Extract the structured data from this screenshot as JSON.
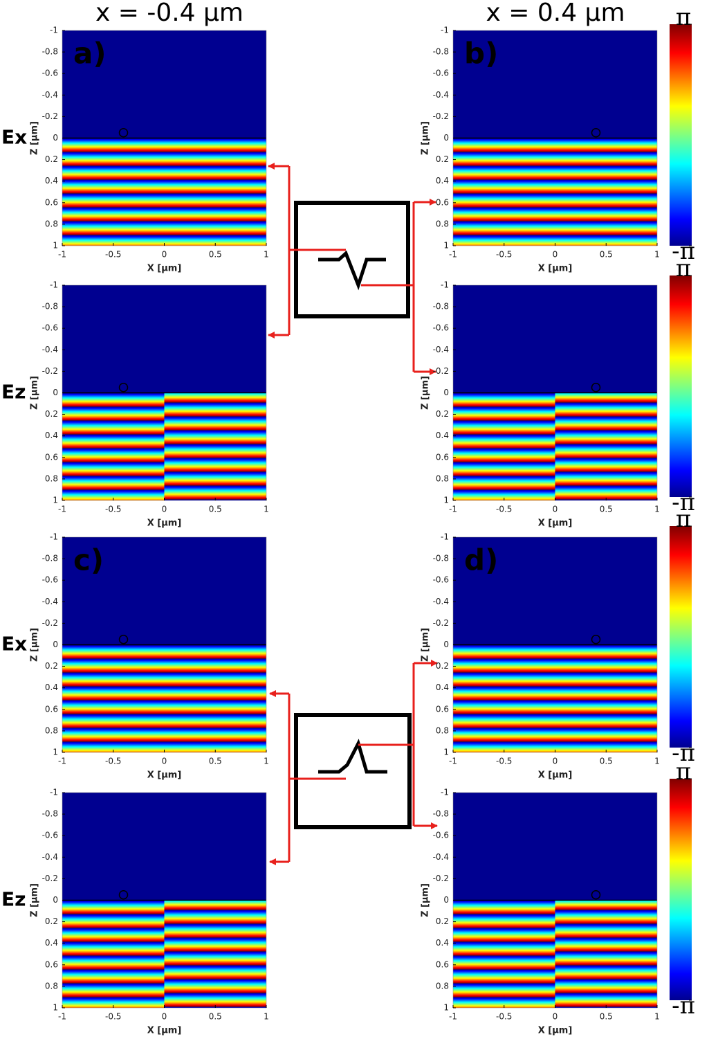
{
  "column_headers": [
    "x = -0.4 μm",
    "x = 0.4 μm"
  ],
  "row_labels": [
    "Ex",
    "Ez",
    "Ex",
    "Ez"
  ],
  "colorbars": [
    {
      "ylim": [
        -3.1416,
        3.1416
      ],
      "yticks": [
        {
          "value": 3.1416,
          "label": "π"
        },
        {
          "value": -3.1416,
          "label": "-π"
        }
      ]
    },
    {
      "ylim": [
        -3.1416,
        3.1416
      ],
      "yticks": [
        {
          "value": 3.1416,
          "label": "π"
        },
        {
          "value": -3.1416,
          "label": "-π"
        }
      ]
    },
    {
      "ylim": [
        -3.1416,
        3.1416
      ],
      "yticks": [
        {
          "value": 3.1416,
          "label": "π"
        },
        {
          "value": -3.1416,
          "label": "-π"
        }
      ]
    },
    {
      "ylim": [
        -3.1416,
        3.1416
      ],
      "yticks": [
        {
          "value": 3.1416,
          "label": "π"
        },
        {
          "value": -3.1416,
          "label": "-π"
        }
      ]
    }
  ],
  "chart_data": [
    {
      "type": "heatmap",
      "panel_label": "a)",
      "xlabel": "X [μm]",
      "ylabel": "Z [μm]",
      "xlim": [
        -1,
        1
      ],
      "ylim": [
        1,
        -1
      ],
      "xticks": [
        -1,
        -0.5,
        0,
        0.5,
        1
      ],
      "yticks": [
        -1,
        -0.8,
        -0.6,
        -0.4,
        -0.2,
        0,
        0.2,
        0.4,
        0.6,
        0.8,
        1
      ],
      "marker": {
        "x": -0.4,
        "y": -0.05
      }
    },
    {
      "type": "heatmap",
      "panel_label": "b)",
      "xlabel": "X [μm]",
      "ylabel": "Z [μm]",
      "xlim": [
        -1,
        1
      ],
      "ylim": [
        1,
        -1
      ],
      "xticks": [
        -1,
        -0.5,
        0,
        0.5,
        1
      ],
      "yticks": [
        -1,
        -0.8,
        -0.6,
        -0.4,
        -0.2,
        0,
        0.2,
        0.4,
        0.6,
        0.8,
        1
      ],
      "marker": {
        "x": 0.4,
        "y": -0.05
      }
    },
    {
      "type": "heatmap-split",
      "xlabel": "X [μm]",
      "ylabel": "Z [μm]",
      "xlim": [
        -1,
        1
      ],
      "ylim": [
        1,
        -1
      ],
      "xticks": [
        -1,
        -0.5,
        0,
        0.5,
        1
      ],
      "yticks": [
        -1,
        -0.8,
        -0.6,
        -0.4,
        -0.2,
        0,
        0.2,
        0.4,
        0.6,
        0.8,
        1
      ],
      "marker": {
        "x": -0.4,
        "y": -0.05
      }
    },
    {
      "type": "heatmap-split",
      "xlabel": "X [μm]",
      "ylabel": "Z [μm]",
      "xlim": [
        -1,
        1
      ],
      "ylim": [
        1,
        -1
      ],
      "xticks": [
        -1,
        -0.5,
        0,
        0.5,
        1
      ],
      "yticks": [
        -1,
        -0.8,
        -0.6,
        -0.4,
        -0.2,
        0,
        0.2,
        0.4,
        0.6,
        0.8,
        1
      ],
      "marker": {
        "x": 0.4,
        "y": -0.05
      }
    },
    {
      "type": "heatmap",
      "panel_label": "c)",
      "xlabel": "X [μm]",
      "ylabel": "Z [μm]",
      "xlim": [
        -1,
        1
      ],
      "ylim": [
        1,
        -1
      ],
      "xticks": [
        -1,
        -0.5,
        0,
        0.5,
        1
      ],
      "yticks": [
        -1,
        -0.8,
        -0.6,
        -0.4,
        -0.2,
        0,
        0.2,
        0.4,
        0.6,
        0.8,
        1
      ],
      "marker": {
        "x": -0.4,
        "y": -0.05
      }
    },
    {
      "type": "heatmap",
      "panel_label": "d)",
      "xlabel": "X [μm]",
      "ylabel": "Z [μm]",
      "xlim": [
        -1,
        1
      ],
      "ylim": [
        1,
        -1
      ],
      "xticks": [
        -1,
        -0.5,
        0,
        0.5,
        1
      ],
      "yticks": [
        -1,
        -0.8,
        -0.6,
        -0.4,
        -0.2,
        0,
        0.2,
        0.4,
        0.6,
        0.8,
        1
      ],
      "marker": {
        "x": 0.4,
        "y": -0.05
      }
    },
    {
      "type": "heatmap-split",
      "xlabel": "X [μm]",
      "ylabel": "Z [μm]",
      "xlim": [
        -1,
        1
      ],
      "ylim": [
        1,
        -1
      ],
      "xticks": [
        -1,
        -0.5,
        0,
        0.5,
        1
      ],
      "yticks": [
        -1,
        -0.8,
        -0.6,
        -0.4,
        -0.2,
        0,
        0.2,
        0.4,
        0.6,
        0.8,
        1
      ],
      "marker": {
        "x": -0.4,
        "y": -0.05
      }
    },
    {
      "type": "heatmap-split",
      "xlabel": "X [μm]",
      "ylabel": "Z [μm]",
      "xlim": [
        -1,
        1
      ],
      "ylim": [
        1,
        -1
      ],
      "xticks": [
        -1,
        -0.5,
        0,
        0.5,
        1
      ],
      "yticks": [
        -1,
        -0.8,
        -0.6,
        -0.4,
        -0.2,
        0,
        0.2,
        0.4,
        0.6,
        0.8,
        1
      ],
      "marker": {
        "x": 0.4,
        "y": -0.05
      }
    }
  ]
}
